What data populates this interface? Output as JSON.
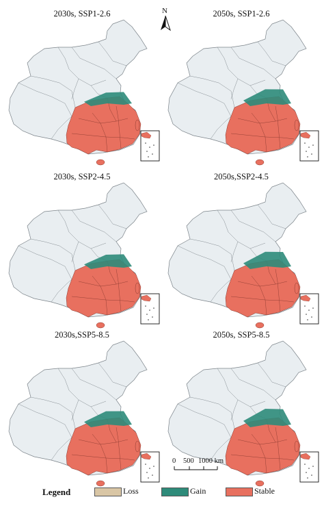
{
  "panels": [
    {
      "title": "2030s, SSP1-2.6",
      "gain_level": 0.15
    },
    {
      "title": "2050s, SSP1-2.6",
      "gain_level": 0.55
    },
    {
      "title": "2030s, SSP2-4.5",
      "gain_level": 0.25
    },
    {
      "title": "2050s,SSP2-4.5",
      "gain_level": 0.6
    },
    {
      "title": "2030s,SSP5-8.5",
      "gain_level": 0.45
    },
    {
      "title": "2050s, SSP5-8.5",
      "gain_level": 0.75
    }
  ],
  "north_arrow": {
    "label": "N"
  },
  "scale_bar": {
    "labels": [
      "0",
      "500",
      "1000 km"
    ]
  },
  "legend": {
    "title": "Legend",
    "items": [
      {
        "label": "Loss",
        "color": "#d9c6a5"
      },
      {
        "label": "Gain",
        "color": "#2e8b7a"
      },
      {
        "label": "Stable",
        "color": "#e8705f"
      }
    ]
  },
  "colors": {
    "land": "#e9eef1",
    "border": "#7a8288",
    "stable": "#e8705f",
    "gain": "#2e8b7a"
  }
}
